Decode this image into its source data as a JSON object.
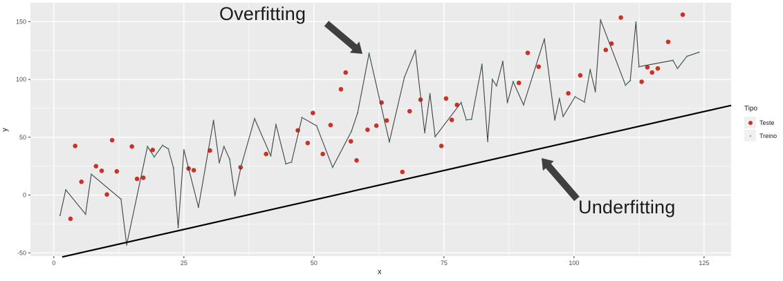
{
  "axes": {
    "x_title": "x",
    "y_title": "y"
  },
  "legend": {
    "title": "Tipo",
    "items": [
      {
        "label": "Teste",
        "marker": "large-red-dot",
        "color": "#cc3126"
      },
      {
        "label": "Treino",
        "marker": "small-green-dot",
        "color": "#2e9e63"
      }
    ]
  },
  "colors": {
    "panel": "#ebebeb",
    "grid": "#ffffff",
    "test_point": "#cc3126",
    "train_point": "#2e9e63",
    "overfit_line": "#404040",
    "underfit_line": "#000000",
    "annotation_text": "#1c1c1c",
    "arrow": "#3f3f3f",
    "tick_label": "#4d4d4d",
    "axis_title": "#1a1a1a"
  },
  "chart_data": {
    "type": "scatter",
    "title": "",
    "xlabel": "x",
    "ylabel": "y",
    "xlim": [
      -4.5,
      130.2
    ],
    "ylim": [
      -52.8,
      166.3
    ],
    "x_ticks": [
      0,
      25,
      50,
      75,
      100,
      125
    ],
    "x_tick_labels": [
      "0",
      "25",
      "50",
      "75",
      "100",
      "125"
    ],
    "y_ticks": [
      -50,
      0,
      50,
      100,
      150
    ],
    "y_tick_labels": [
      "-50",
      "0",
      "50",
      "100",
      "150"
    ],
    "grid": true,
    "legend_position": "right",
    "annotations": [
      {
        "text": "Overfitting",
        "x": 41.5,
        "y": 154
      },
      {
        "text": "Underfitting",
        "x": 101,
        "y": -12
      }
    ],
    "series": [
      {
        "name": "Teste",
        "type": "scatter",
        "color": "#cc3126",
        "marker_size": 3.3,
        "points": [
          [
            3.2,
            -20.5
          ],
          [
            4.1,
            42.5
          ],
          [
            5.3,
            11.5
          ],
          [
            8.1,
            25
          ],
          [
            9.2,
            21
          ],
          [
            10.2,
            0.5
          ],
          [
            11.2,
            47.5
          ],
          [
            12.1,
            20.5
          ],
          [
            15,
            42
          ],
          [
            16,
            14
          ],
          [
            17.2,
            15
          ],
          [
            19,
            39
          ],
          [
            25.9,
            23
          ],
          [
            26.9,
            21.5
          ],
          [
            30,
            38.5
          ],
          [
            35.9,
            24
          ],
          [
            40.8,
            35.5
          ],
          [
            46.9,
            56
          ],
          [
            48.8,
            45
          ],
          [
            49.8,
            71
          ],
          [
            51.7,
            35.5
          ],
          [
            53.2,
            60.5
          ],
          [
            55.2,
            91.5
          ],
          [
            56.1,
            106
          ],
          [
            57.1,
            46.5
          ],
          [
            58.2,
            30
          ],
          [
            60.3,
            56.5
          ],
          [
            62,
            60
          ],
          [
            63,
            80
          ],
          [
            64,
            64.5
          ],
          [
            67,
            20
          ],
          [
            68.4,
            72.5
          ],
          [
            70.5,
            82.5
          ],
          [
            74.5,
            42.5
          ],
          [
            75.4,
            83.5
          ],
          [
            76.5,
            65
          ],
          [
            77.5,
            78
          ],
          [
            89.4,
            97
          ],
          [
            91.1,
            123
          ],
          [
            93.2,
            111
          ],
          [
            98.9,
            88
          ],
          [
            101.2,
            103.5
          ],
          [
            106.1,
            125.5
          ],
          [
            107.2,
            131
          ],
          [
            109,
            153.5
          ],
          [
            113,
            98
          ],
          [
            114.1,
            110.5
          ],
          [
            115,
            106
          ],
          [
            116.1,
            109.5
          ],
          [
            118.1,
            132.5
          ],
          [
            120.9,
            156
          ]
        ]
      },
      {
        "name": "Treino (overfit fit)",
        "type": "line",
        "color": "#404040",
        "width": 1.1,
        "vertex_marker_color": "#2e9e63",
        "vertex_marker_size": 1.2,
        "points": [
          [
            1.2,
            -17.5
          ],
          [
            2.3,
            4.5
          ],
          [
            6.1,
            -16.5
          ],
          [
            7.2,
            18
          ],
          [
            12.9,
            -3.5
          ],
          [
            14,
            -43
          ],
          [
            18,
            42
          ],
          [
            19.3,
            33
          ],
          [
            20.9,
            43
          ],
          [
            22,
            40
          ],
          [
            23,
            23.5
          ],
          [
            23.9,
            -28
          ],
          [
            25,
            39
          ],
          [
            27.8,
            -10.5
          ],
          [
            30.7,
            64.5
          ],
          [
            31.8,
            28
          ],
          [
            32.7,
            42
          ],
          [
            33.8,
            31
          ],
          [
            34.8,
            -0.5
          ],
          [
            36,
            25
          ],
          [
            38.6,
            66
          ],
          [
            41.7,
            34
          ],
          [
            42.7,
            61
          ],
          [
            44.6,
            27
          ],
          [
            45.7,
            28.5
          ],
          [
            47.7,
            67
          ],
          [
            50.5,
            60
          ],
          [
            53.6,
            24
          ],
          [
            57.2,
            55
          ],
          [
            58.4,
            71
          ],
          [
            60.6,
            122.5
          ],
          [
            64.5,
            46
          ],
          [
            67.4,
            102
          ],
          [
            69.5,
            125
          ],
          [
            71.3,
            54
          ],
          [
            72.3,
            87.5
          ],
          [
            73.3,
            50.5
          ],
          [
            78.3,
            80
          ],
          [
            79.3,
            65
          ],
          [
            80.3,
            65.5
          ],
          [
            82.3,
            113
          ],
          [
            83.4,
            46.5
          ],
          [
            84.3,
            100
          ],
          [
            85.1,
            94.5
          ],
          [
            86.3,
            115.5
          ],
          [
            87.2,
            80
          ],
          [
            88.3,
            98
          ],
          [
            90.3,
            78
          ],
          [
            94.3,
            135
          ],
          [
            96.3,
            65
          ],
          [
            97.2,
            83.5
          ],
          [
            97.9,
            68
          ],
          [
            100.2,
            85
          ],
          [
            102,
            80.5
          ],
          [
            103.1,
            108.5
          ],
          [
            104.1,
            89.5
          ],
          [
            105.1,
            151.5
          ],
          [
            109.9,
            95
          ],
          [
            110.8,
            99
          ],
          [
            111.9,
            149.5
          ],
          [
            112.5,
            111
          ],
          [
            119,
            116.5
          ],
          [
            119.9,
            109.5
          ],
          [
            121.7,
            120
          ],
          [
            124,
            123.5
          ]
        ]
      },
      {
        "name": "Underfitting fit",
        "type": "line",
        "color": "#000000",
        "width": 2.2,
        "points": [
          [
            1.6,
            -53.5
          ],
          [
            130.2,
            77.5
          ]
        ]
      }
    ]
  }
}
